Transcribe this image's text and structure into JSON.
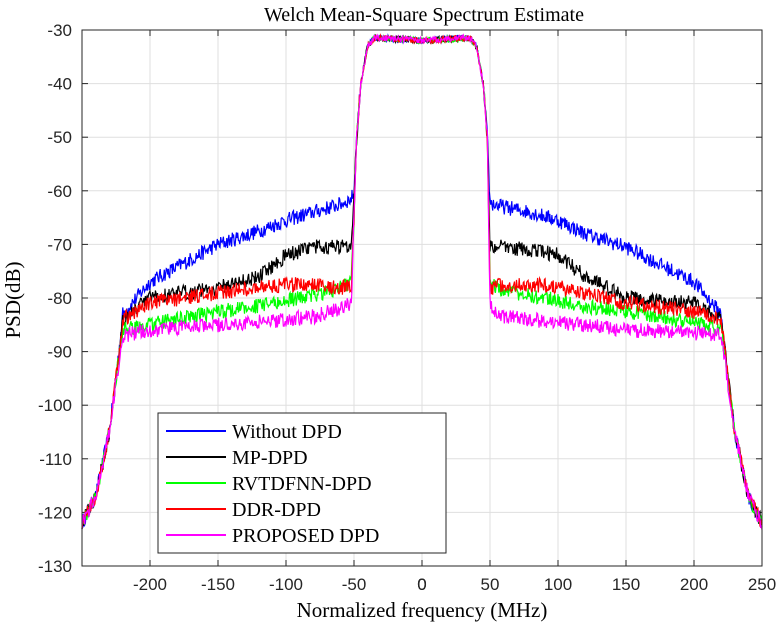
{
  "chart_data": {
    "type": "line",
    "title": "Welch Mean-Square Spectrum Estimate",
    "xlabel": "Normalized frequency (MHz)",
    "ylabel": "PSD(dB)",
    "xlim": [
      -250,
      250
    ],
    "ylim": [
      -130,
      -30
    ],
    "x_ticks": [
      -200,
      -150,
      -100,
      -50,
      0,
      50,
      100,
      150,
      200,
      250
    ],
    "y_ticks": [
      -30,
      -40,
      -50,
      -60,
      -70,
      -80,
      -90,
      -100,
      -110,
      -120,
      -130
    ],
    "grid": true,
    "legend_position": "bottom-left",
    "x": [
      -250,
      -240,
      -230,
      -225,
      -220,
      -200,
      -150,
      -120,
      -100,
      -80,
      -60,
      -52,
      -50,
      -48,
      -45,
      -40,
      -35,
      -30,
      0,
      30,
      35,
      40,
      45,
      48,
      50,
      52,
      60,
      80,
      100,
      120,
      150,
      200,
      220,
      225,
      230,
      240,
      250
    ],
    "series": [
      {
        "name": "Without DPD",
        "color": "#0000ff",
        "values": [
          -122,
          -117,
          -105,
          -95,
          -83,
          -77,
          -70,
          -67.5,
          -65.5,
          -64,
          -62.5,
          -61.5,
          -60,
          -50,
          -40,
          -33,
          -31.5,
          -31.5,
          -32,
          -31.5,
          -31.5,
          -33,
          -40,
          -50,
          -62,
          -62.5,
          -63,
          -64,
          -65.5,
          -68,
          -70.5,
          -77,
          -83,
          -95,
          -105,
          -117,
          -122
        ]
      },
      {
        "name": "MP-DPD",
        "color": "#000000",
        "values": [
          -122,
          -117,
          -105,
          -95,
          -84,
          -80,
          -78,
          -76,
          -72,
          -70.5,
          -70.5,
          -70,
          -60,
          -50,
          -40,
          -33,
          -31.5,
          -31.5,
          -32,
          -31.5,
          -31.5,
          -33,
          -40,
          -50,
          -70,
          -70.5,
          -70.5,
          -71,
          -72,
          -76,
          -80,
          -81,
          -84,
          -95,
          -105,
          -117,
          -122
        ]
      },
      {
        "name": "RVTDFNN-DPD",
        "color": "#00ff00",
        "values": [
          -122,
          -117,
          -105,
          -95,
          -86,
          -85,
          -82.5,
          -81.5,
          -80.5,
          -79.5,
          -78,
          -77,
          -65,
          -50,
          -40,
          -33,
          -31.5,
          -31.5,
          -32,
          -31.5,
          -31.5,
          -33,
          -40,
          -50,
          -76,
          -77.5,
          -78.5,
          -79.5,
          -80.5,
          -81.5,
          -82.5,
          -84.5,
          -86,
          -95,
          -105,
          -117,
          -122
        ]
      },
      {
        "name": "DDR-DPD",
        "color": "#ff0000",
        "values": [
          -122,
          -117,
          -105,
          -95,
          -84,
          -81,
          -79,
          -78,
          -77.5,
          -77.5,
          -78,
          -78,
          -65,
          -50,
          -40,
          -33,
          -31.5,
          -31.5,
          -32,
          -31.5,
          -31.5,
          -33,
          -40,
          -50,
          -78,
          -78,
          -77.5,
          -77.5,
          -78,
          -79,
          -81,
          -82.5,
          -84,
          -95,
          -105,
          -117,
          -122
        ]
      },
      {
        "name": "PROPOSED DPD",
        "color": "#ff00ff",
        "values": [
          -122,
          -117,
          -105,
          -96,
          -87,
          -86,
          -85,
          -84.5,
          -84,
          -83.5,
          -82,
          -81,
          -65,
          -50,
          -40,
          -33,
          -31.5,
          -31.5,
          -32,
          -31.5,
          -31.5,
          -33,
          -40,
          -50,
          -81,
          -82,
          -83.5,
          -84,
          -84.5,
          -85,
          -86,
          -86.5,
          -87,
          -96,
          -105,
          -117,
          -122
        ]
      }
    ]
  }
}
